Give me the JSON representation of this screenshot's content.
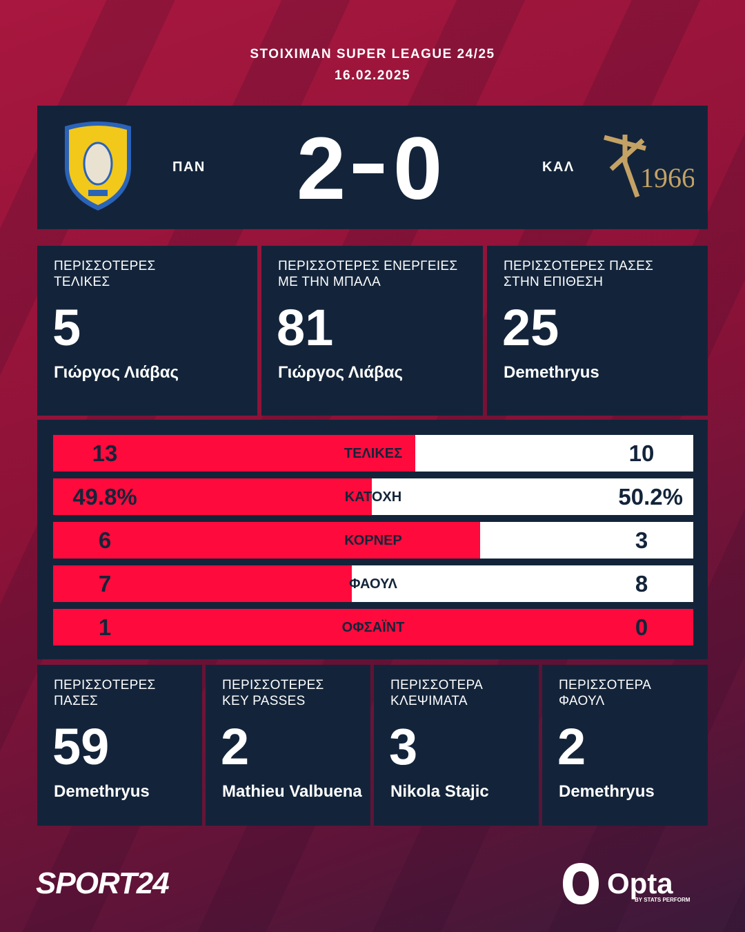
{
  "header": {
    "competition": "STOIXIMAN SUPER LEAGUE 24/25",
    "date": "16.02.2025"
  },
  "score": {
    "home_abbr": "ΠΑΝ",
    "home_score": 2,
    "away_score": 0,
    "away_abbr": "ΚΑΛ",
    "away_logo_text": "1966"
  },
  "top_cards": [
    {
      "label_lines": [
        "ΠΕΡΙΣΣΟΤΕΡΕΣ",
        "ΤΕΛΙΚΕΣ"
      ],
      "value": 5,
      "player": "Γιώργος Λιάβας"
    },
    {
      "label_lines": [
        "ΠΕΡΙΣΣΟΤΕΡΕΣ ΕΝΕΡΓΕΙΕΣ",
        "ΜΕ ΤΗΝ ΜΠΑΛΑ"
      ],
      "value": 81,
      "player": "Γιώργος Λιάβας"
    },
    {
      "label_lines": [
        "ΠΕΡΙΣΣΟΤΕΡΕΣ ΠΑΣΕΣ",
        "ΣΤΗΝ ΕΠΙΘΕΣΗ"
      ],
      "value": 25,
      "player": "Demethryus"
    }
  ],
  "stats": {
    "home_color": "#ff0a3c",
    "away_color": "#ffffff",
    "rows": [
      {
        "label": "ΤΕΛΙΚΕΣ",
        "home": 13,
        "away": 10
      },
      {
        "label": "ΚΑΤΟΧΗ",
        "home": {
          "value": 49.8,
          "label": "49.8%"
        },
        "away": {
          "value": 50.2,
          "label": "50.2%"
        }
      },
      {
        "label": "ΚΟΡΝΕΡ",
        "home": 6,
        "away": 3
      },
      {
        "label": "ΦΑΟΥΛ",
        "home": 7,
        "away": 8
      },
      {
        "label": "ΟΦΣΑΪΝΤ",
        "home": 1,
        "away": 0
      }
    ]
  },
  "bottom_cards": [
    {
      "label_lines": [
        "ΠΕΡΙΣΣΟΤΕΡΕΣ",
        "ΠΑΣΕΣ"
      ],
      "value": 59,
      "player": "Demethryus"
    },
    {
      "label_lines": [
        "ΠΕΡΙΣΣΟΤΕΡΕΣ",
        "KEY PASSES"
      ],
      "value": 2,
      "player": "Mathieu Valbuena"
    },
    {
      "label_lines": [
        "ΠΕΡΙΣΣΟΤΕΡΑ",
        "ΚΛΕΨΙΜΑΤΑ"
      ],
      "value": 3,
      "player": "Nikola Stajic"
    },
    {
      "label_lines": [
        "ΠΕΡΙΣΣΟΤΕΡΑ",
        "ΦΑΟΥΛ"
      ],
      "value": 2,
      "player": "Demethryus"
    }
  ],
  "footer": {
    "brand": "SPORT24",
    "provider": "Opta",
    "provider_sub": "BY STATS PERFORM"
  }
}
